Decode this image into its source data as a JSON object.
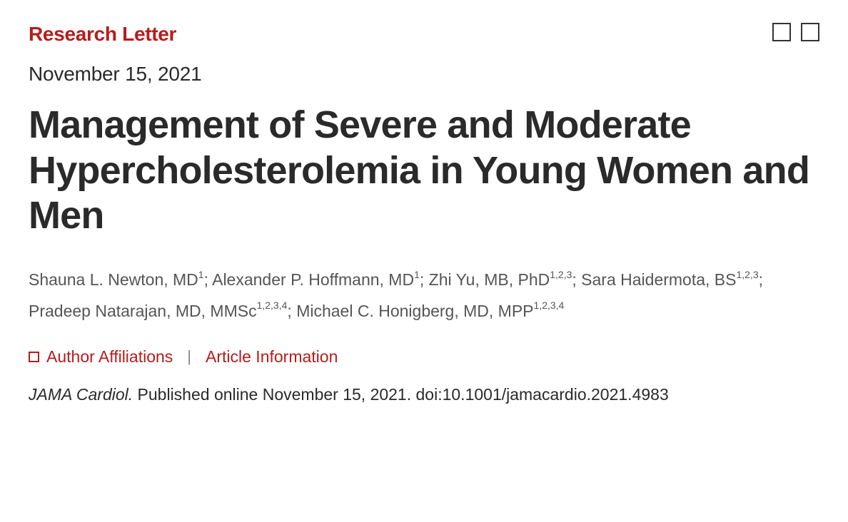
{
  "colors": {
    "accent": "#b71c1c",
    "heading": "#2a2a2a",
    "body_muted": "#555555",
    "icon_border": "#333333",
    "background": "#ffffff"
  },
  "typography": {
    "article_type_fontsize": 28,
    "date_fontsize": 28,
    "title_fontsize": 54,
    "authors_fontsize": 23,
    "meta_links_fontsize": 23,
    "citation_fontsize": 23
  },
  "article_type": "Research Letter",
  "pub_date": "November 15, 2021",
  "title": "Management of Severe and Moderate Hypercholesterolemia in Young Women and Men",
  "authors": [
    {
      "name": "Shauna L. Newton, MD",
      "affil": "1"
    },
    {
      "name": "Alexander P. Hoffmann, MD",
      "affil": "1"
    },
    {
      "name": "Zhi Yu, MB, PhD",
      "affil": "1,2,3"
    },
    {
      "name": "Sara Haidermota, BS",
      "affil": "1,2,3"
    },
    {
      "name": "Pradeep Natarajan, MD, MMSc",
      "affil": "1,2,3,4"
    },
    {
      "name": "Michael C. Honigberg, MD, MPP",
      "affil": "1,2,3,4"
    }
  ],
  "meta_links": {
    "affiliations": "Author Affiliations",
    "article_info": "Article Information"
  },
  "citation": {
    "journal": "JAMA Cardiol.",
    "rest": " Published online November 15, 2021. doi:10.1001/jamacardio.2021.4983"
  }
}
